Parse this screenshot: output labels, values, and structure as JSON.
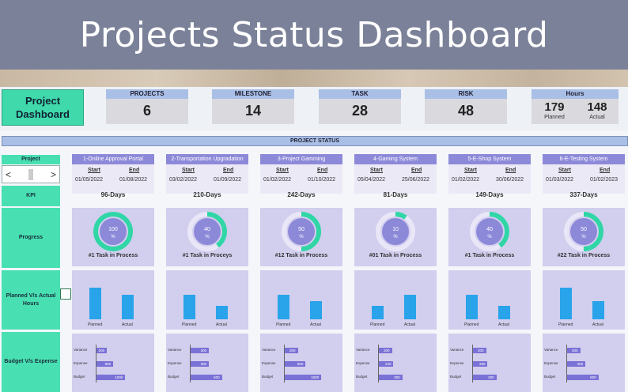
{
  "title": "Projects Status Dashboard",
  "project_dashboard": "Project Dashboard",
  "kpis": [
    {
      "label": "PROJECTS",
      "value": "6"
    },
    {
      "label": "MILESTONE",
      "value": "14"
    },
    {
      "label": "TASK",
      "value": "28"
    },
    {
      "label": "RISK",
      "value": "48"
    }
  ],
  "hours": {
    "label": "Hours",
    "planned_value": "179",
    "planned_label": "Planned",
    "actual_value": "148",
    "actual_label": "Actual"
  },
  "section_title": "PROJECT STATUS",
  "row_labels": {
    "project": "Project",
    "kpi": "KPI",
    "progress": "Progress",
    "hours": "Planned V/s Actual Hours",
    "budget": "Budget V/s Expense"
  },
  "nav": {
    "prev": "<",
    "next": ">"
  },
  "start_label": "Start",
  "end_label": "End",
  "bar_labels": {
    "planned": "Planned",
    "actual": "Actual"
  },
  "budget_labels": {
    "variance": "Variance",
    "expense": "Expense",
    "budget": "Budget"
  },
  "colors": {
    "accent": "#3fd9ab",
    "ring": "#30d6a6",
    "ring_center": "#8d89d9",
    "bar": "#29a3ea",
    "header": "#8d89d9"
  },
  "projects": [
    {
      "name": "1-Online Approval Portal",
      "start": "01/05/2022",
      "end": "01/08/2022",
      "kpi": "96-Days",
      "progress": 100,
      "progress_text": "100",
      "task": "#1  Task in Process",
      "planned": 0.95,
      "actual": 0.75,
      "variance": "200",
      "expense": "800",
      "budget": "1000",
      "v": 0.2,
      "e": 0.32,
      "b": 0.55
    },
    {
      "name": "2-Transportation Upgradation",
      "start": "03/02/2022",
      "end": "01/09/2022",
      "kpi": "210-Days",
      "progress": 40,
      "progress_text": "40",
      "task": "#1  Task in Proceys",
      "planned": 0.75,
      "actual": 0.4,
      "variance": "300",
      "expense": "300",
      "budget": "500",
      "v": 0.35,
      "e": 0.35,
      "b": 0.6
    },
    {
      "name": "3-Project Gamming",
      "start": "01/02/2022",
      "end": "01/10/2022",
      "kpi": "242-Days",
      "progress": 50,
      "progress_text": "50",
      "task": "#12  Task in Process",
      "planned": 0.75,
      "actual": 0.55,
      "variance": "200",
      "expense": "800",
      "budget": "1000",
      "v": 0.25,
      "e": 0.4,
      "b": 0.7
    },
    {
      "name": "4-Gaming System",
      "start": "05/04/2022",
      "end": "25/06/2022",
      "kpi": "81-Days",
      "progress": 10,
      "progress_text": "10",
      "task": "#01  Task in Process",
      "planned": 0.4,
      "actual": 0.75,
      "variance": "200",
      "expense": "240",
      "budget": "300",
      "v": 0.25,
      "e": 0.28,
      "b": 0.45
    },
    {
      "name": "5-E-Shop System",
      "start": "01/02/2022",
      "end": "30/06/2022",
      "kpi": "149-Days",
      "progress": 40,
      "progress_text": "40",
      "task": "#1  Task in Process",
      "planned": 0.75,
      "actual": 0.4,
      "variance": "200",
      "expense": "250",
      "budget": "300",
      "v": 0.25,
      "e": 0.28,
      "b": 0.45
    },
    {
      "name": "6-E-Testing System",
      "start": "01/03/2022",
      "end": "01/02/2023",
      "kpi": "337-Days",
      "progress": 50,
      "progress_text": "50",
      "task": "#22  Task in Process",
      "planned": 0.95,
      "actual": 0.55,
      "variance": "200",
      "expense": "400",
      "budget": "800",
      "v": 0.25,
      "e": 0.35,
      "b": 0.6
    }
  ]
}
